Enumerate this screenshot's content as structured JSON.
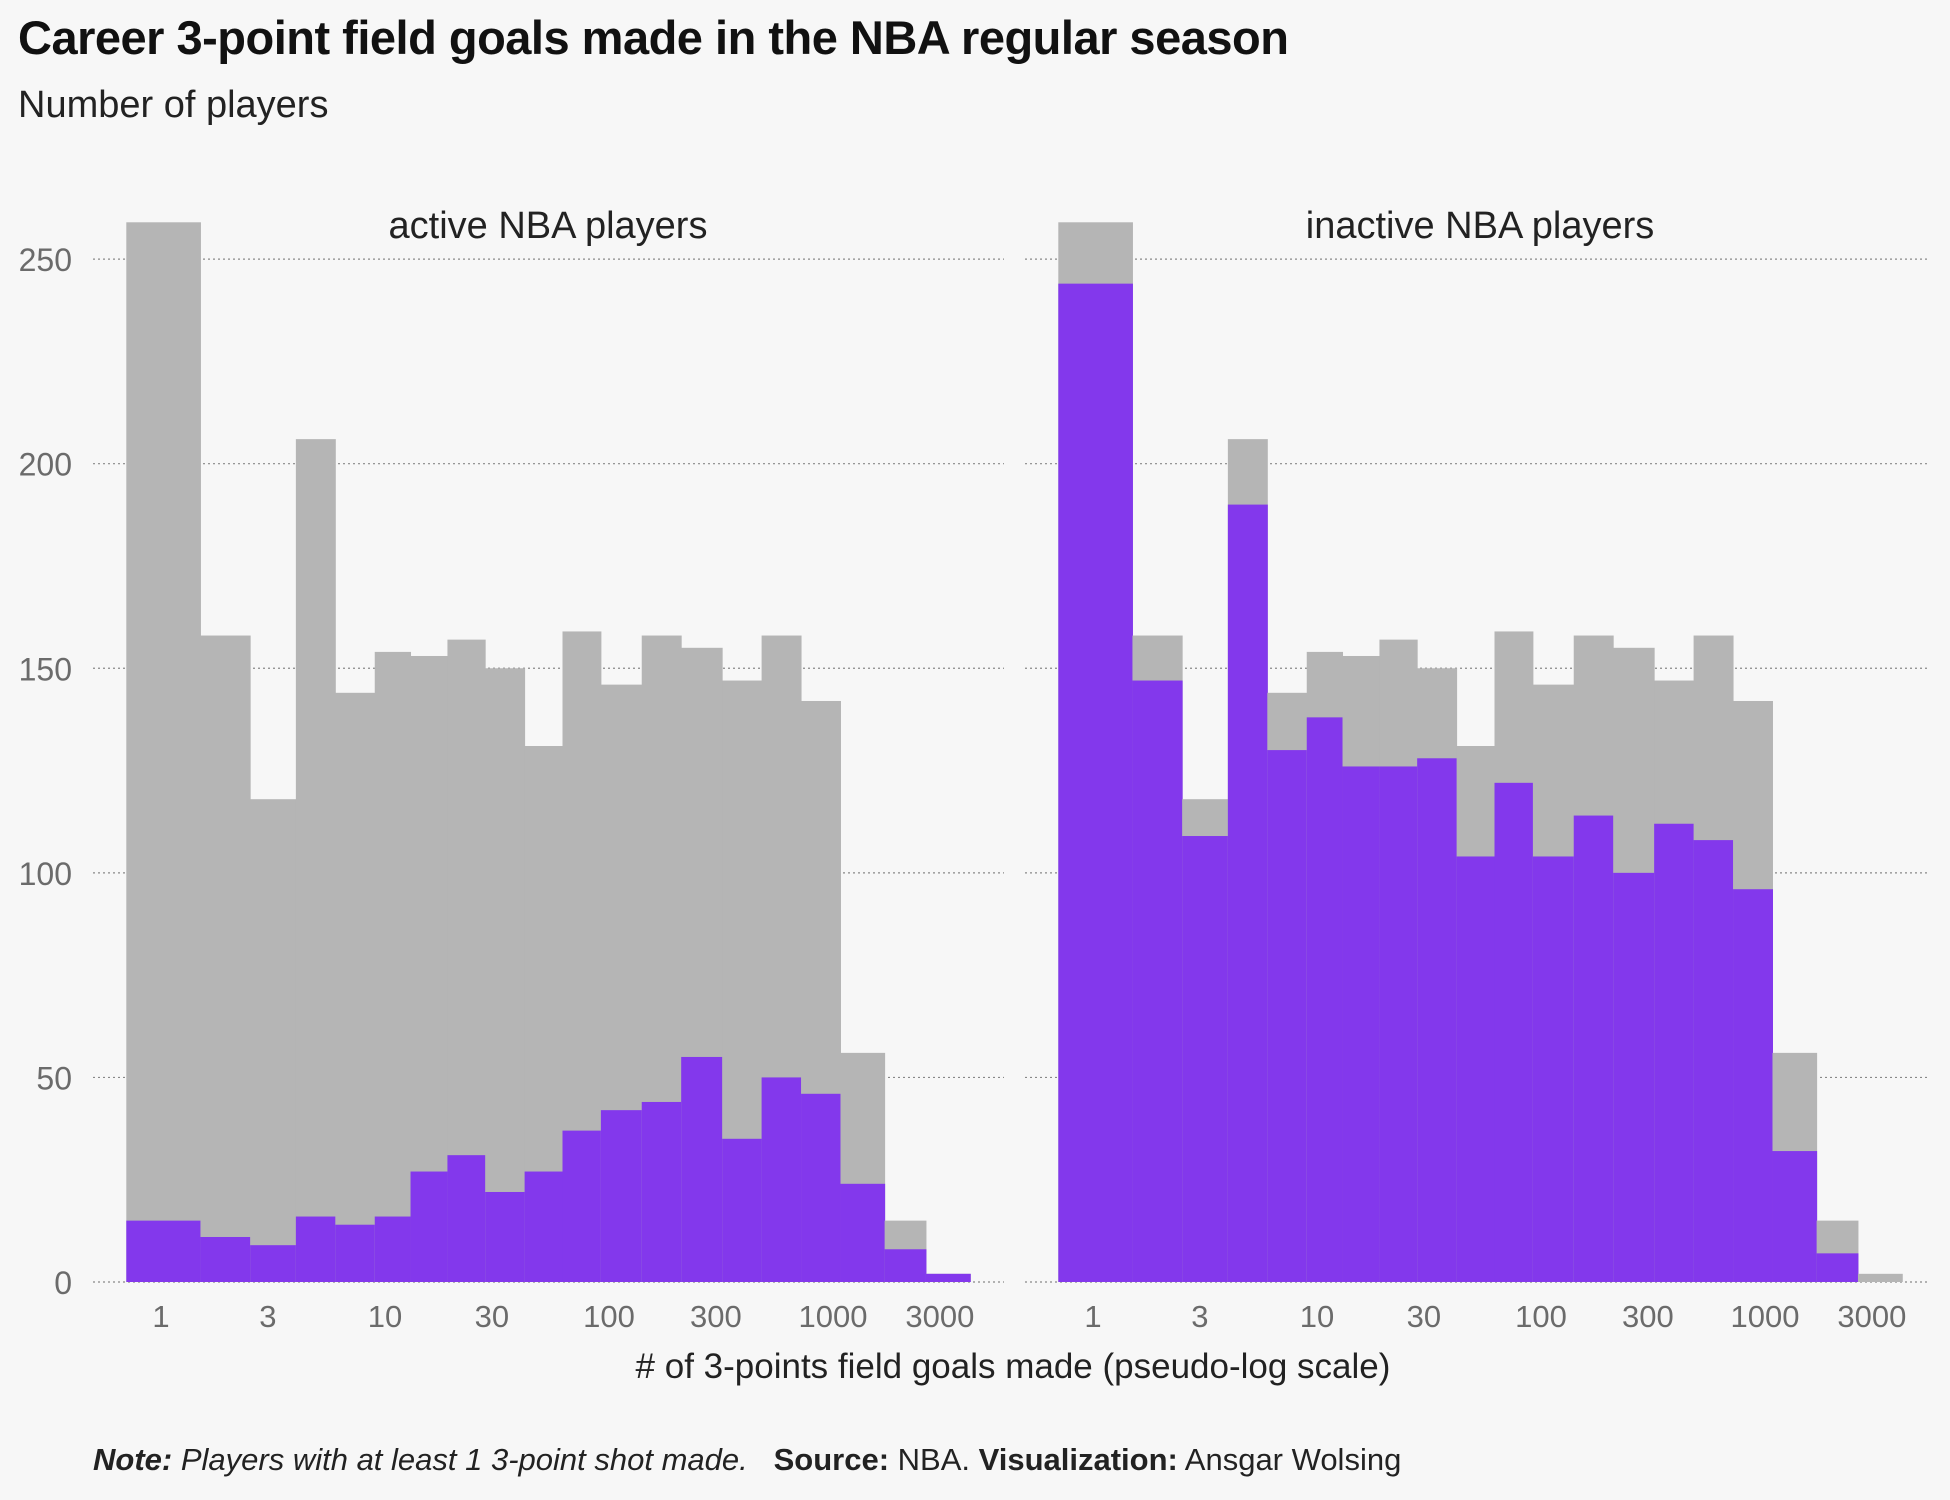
{
  "title": "Career 3-point field goals made in the NBA regular season",
  "subtitle": "Number of players",
  "caption": {
    "note_label": "Note:",
    "note_text": "Players with at least 1 3-point shot made.",
    "source_label": "Source:",
    "source_text": "NBA.",
    "viz_label": "Visualization:",
    "viz_text": "Ansgar Wolsing"
  },
  "colors": {
    "background": "#f7f7f7",
    "all_players": "#b5b5b5",
    "highlight": "#8338ec",
    "grid": "#888888",
    "axis_text": "#6b6b6b"
  },
  "chart_data": {
    "type": "bar",
    "xlabel": "# of 3-points field goals made (pseudo-log scale)",
    "ylabel": "",
    "x_scale": "pseudo-log",
    "ylim": [
      0,
      262
    ],
    "y_ticks": [
      0,
      50,
      100,
      150,
      200,
      250
    ],
    "x_ticks": [
      1,
      3,
      10,
      30,
      100,
      300,
      1000,
      3000
    ],
    "grid": "horizontal dotted",
    "bin_left_edges": [
      0.7,
      1.5,
      2.5,
      4,
      6,
      9,
      13,
      19,
      28,
      42,
      62,
      92,
      140,
      210,
      320,
      480,
      720,
      1080,
      1700,
      2600
    ],
    "bin_right_edge": 4100,
    "background_series": [
      259,
      158,
      118,
      206,
      144,
      154,
      153,
      157,
      150,
      131,
      159,
      146,
      158,
      155,
      147,
      158,
      142,
      56,
      15,
      2
    ],
    "panels": [
      {
        "title": "active NBA players",
        "values": [
          15,
          11,
          9,
          16,
          14,
          16,
          27,
          31,
          22,
          27,
          37,
          42,
          44,
          55,
          35,
          50,
          46,
          24,
          8,
          2
        ]
      },
      {
        "title": "inactive NBA players",
        "values": [
          244,
          147,
          109,
          190,
          130,
          138,
          126,
          126,
          128,
          104,
          122,
          104,
          114,
          100,
          112,
          108,
          96,
          32,
          7,
          0
        ]
      }
    ]
  }
}
